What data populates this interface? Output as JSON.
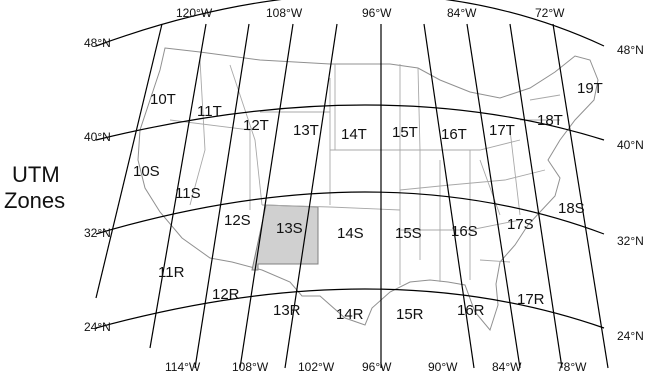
{
  "title_lines": [
    "UTM",
    "Zones"
  ],
  "longitudes_top": [
    "120°W",
    "108°W",
    "96°W",
    "84°W",
    "72°W"
  ],
  "longitudes_bottom": [
    "114°W",
    "108°W",
    "102°W",
    "96°W",
    "90°W",
    "84°W",
    "78°W"
  ],
  "latitudes_left": [
    "48°N",
    "40°N",
    "32°N",
    "24°N"
  ],
  "latitudes_right": [
    "48°N",
    "40°N",
    "32°N",
    "24°N"
  ],
  "zones": [
    "10T",
    "11T",
    "12T",
    "13T",
    "14T",
    "15T",
    "16T",
    "17T",
    "18T",
    "19T",
    "10S",
    "11S",
    "12S",
    "13S",
    "14S",
    "15S",
    "16S",
    "17S",
    "18S",
    "11R",
    "12R",
    "13R",
    "14R",
    "15R",
    "16R",
    "17R"
  ],
  "highlighted_zone": "13S",
  "colors": {
    "highlight": "#d0d0d0",
    "grid": "#000000",
    "state_borders": "#a8a8a8"
  }
}
